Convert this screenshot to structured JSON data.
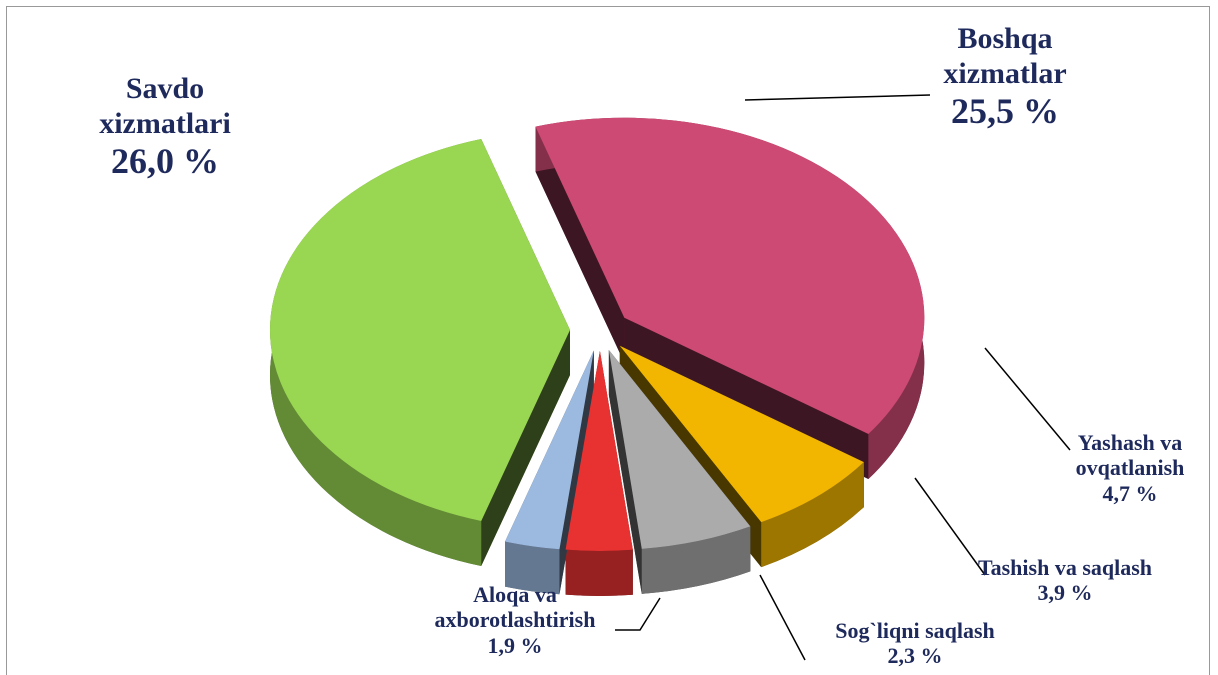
{
  "chart_data": {
    "type": "pie",
    "categories": [
      "Savdo xizmatlari",
      "Boshqa xizmatlar",
      "Yashash va ovqatlanish",
      "Tashish va saqlash",
      "Sog`liqni saqlash",
      "Aloqa va axborotlashtirish"
    ],
    "values": [
      26.0,
      25.5,
      4.7,
      3.9,
      2.3,
      1.9
    ],
    "value_labels": [
      "26,0 %",
      "25,5 %",
      "4,7 %",
      "3,9 %",
      "2,3 %",
      "1,9 %"
    ],
    "colors": [
      "#99d652",
      "#cc4a74",
      "#f2b600",
      "#ababab",
      "#e83232",
      "#9cb9df"
    ]
  }
}
